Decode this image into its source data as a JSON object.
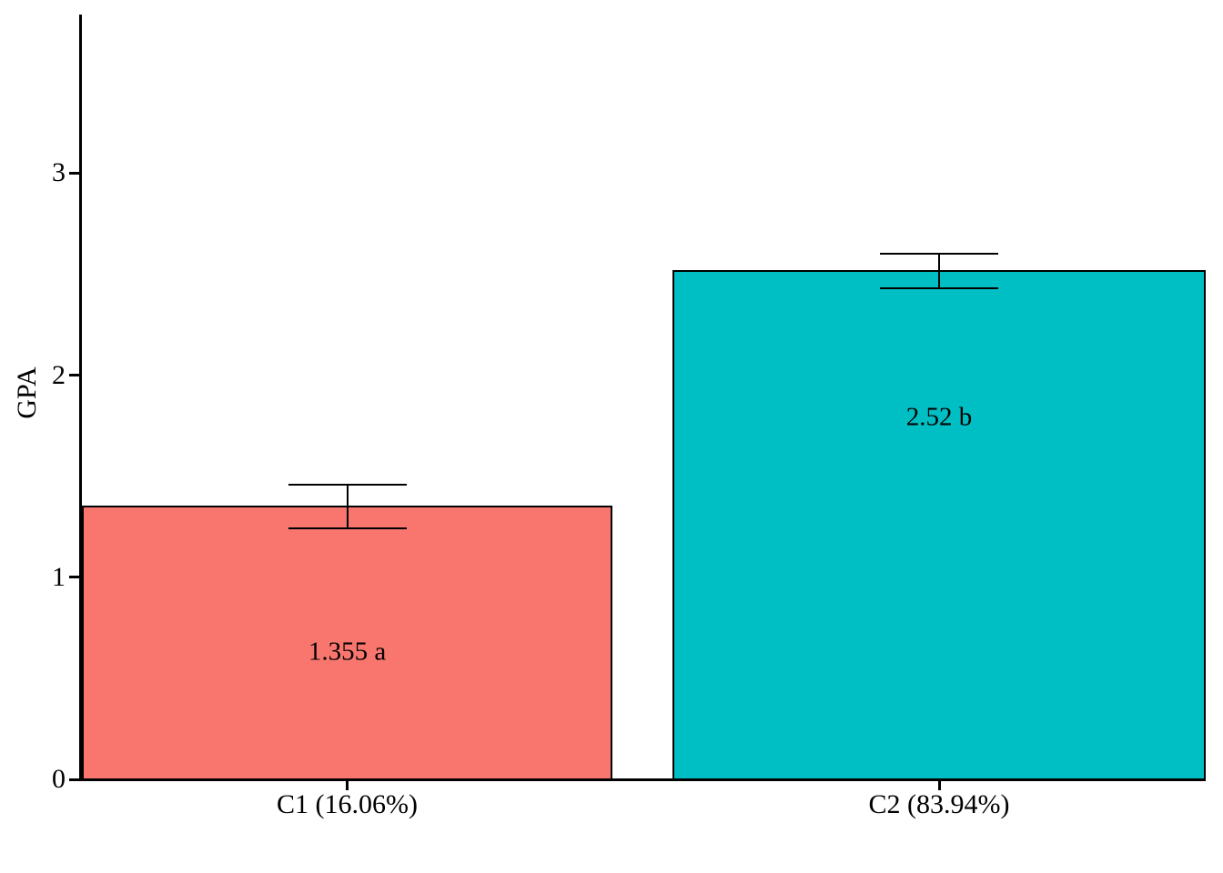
{
  "figure": {
    "background": "#FFFFFF",
    "axis_color": "#000000",
    "text_color": "#000000"
  },
  "chart_data": {
    "type": "bar",
    "title": "",
    "xlabel": "",
    "ylabel": "GPA",
    "categories": [
      "C1 (16.06%)",
      "C2 (83.94%)"
    ],
    "values": [
      1.355,
      2.52
    ],
    "bar_labels": [
      "1.355 a",
      "2.52 b"
    ],
    "bar_label_y": [
      0.63,
      1.79
    ],
    "bar_colors": [
      "#F8766D",
      "#00BFC4"
    ],
    "bar_border_color": "#000000",
    "error_low": [
      1.24,
      2.43
    ],
    "error_high": [
      1.46,
      2.6
    ],
    "yticks": [
      0,
      1,
      2,
      3
    ],
    "ylim": [
      0,
      3.78
    ],
    "grid": false,
    "legend_position": "none"
  }
}
